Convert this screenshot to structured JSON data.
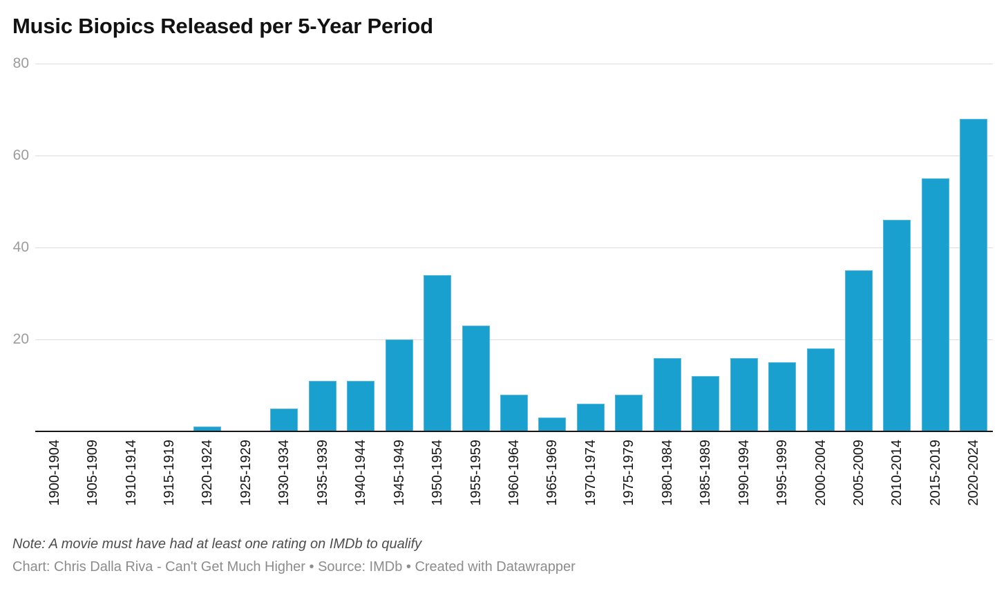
{
  "chart_data": {
    "type": "bar",
    "title": "Music Biopics Released per 5-Year Period",
    "categories": [
      "1900-1904",
      "1905-1909",
      "1910-1914",
      "1915-1919",
      "1920-1924",
      "1925-1929",
      "1930-1934",
      "1935-1939",
      "1940-1944",
      "1945-1949",
      "1950-1954",
      "1955-1959",
      "1960-1964",
      "1965-1969",
      "1970-1974",
      "1975-1979",
      "1980-1984",
      "1985-1989",
      "1990-1994",
      "1995-1999",
      "2000-2004",
      "2005-2009",
      "2010-2014",
      "2015-2019",
      "2020-2024"
    ],
    "values": [
      0,
      0,
      0,
      0,
      1,
      0,
      5,
      11,
      11,
      20,
      34,
      23,
      8,
      3,
      6,
      8,
      16,
      12,
      16,
      15,
      18,
      35,
      46,
      55,
      68
    ],
    "xlabel": "",
    "ylabel": "",
    "ylim": [
      0,
      80
    ],
    "yticks": [
      20,
      40,
      60,
      80
    ],
    "grid": true,
    "legend": "none",
    "bar_color": "#1aa0ce",
    "note": "Note: A movie must have had at least one rating on IMDb to qualify",
    "attribution": "Chart: Chris Dalla Riva - Can't Get Much Higher • Source: IMDb • Created with Datawrapper"
  }
}
